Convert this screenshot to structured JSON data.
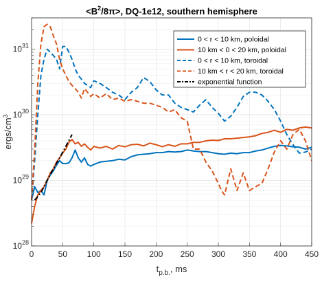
{
  "chart_data": {
    "type": "line",
    "title_parts": {
      "pre": "<B",
      "sup": "2",
      "post": "/8π>, DQ-1e12, southern hemisphere"
    },
    "xlabel_parts": {
      "main": "t",
      "sub": "p.b.",
      "post": ", ms"
    },
    "ylabel_parts": {
      "main": "ergs/cm",
      "sup": "3"
    },
    "xlim": [
      0,
      450
    ],
    "ylim": [
      1e+28,
      3e+31
    ],
    "yscale": "log",
    "grid": true,
    "legend_position": "top-right",
    "x_ticks": [
      0,
      50,
      100,
      150,
      200,
      250,
      300,
      350,
      400,
      450
    ],
    "x_tick_labels": [
      "0",
      "50",
      "100",
      "150",
      "200",
      "250",
      "300",
      "350",
      "400",
      "450"
    ],
    "y_ticks": [
      {
        "exp": 28,
        "base": "10",
        "sup": "28"
      },
      {
        "exp": 29,
        "base": "10",
        "sup": "29"
      },
      {
        "exp": 30,
        "base": "10",
        "sup": "30"
      },
      {
        "exp": 31,
        "base": "10",
        "sup": "31"
      }
    ],
    "series": [
      {
        "name": "0 < r < 10 km, poloidal",
        "color": "#0072BD",
        "dash": "solid",
        "width": 2,
        "x": [
          0,
          5,
          10,
          15,
          20,
          25,
          30,
          35,
          40,
          45,
          50,
          55,
          60,
          65,
          70,
          75,
          80,
          85,
          90,
          95,
          100,
          110,
          120,
          130,
          140,
          150,
          160,
          170,
          180,
          190,
          200,
          210,
          220,
          230,
          240,
          250,
          260,
          270,
          280,
          290,
          300,
          310,
          320,
          330,
          340,
          350,
          360,
          370,
          380,
          390,
          400,
          410,
          420,
          430,
          440,
          450
        ],
        "y": [
          5e+28,
          8e+28,
          6.5e+28,
          7e+28,
          6e+28,
          1e+29,
          1.2e+29,
          1.4e+29,
          1.7e+29,
          2e+29,
          1.8e+29,
          1.8e+29,
          1.85e+29,
          2.2e+29,
          2.9e+29,
          2.2e+29,
          1.9e+29,
          2.2e+29,
          1.75e+29,
          1.65e+29,
          1.75e+29,
          1.9e+29,
          1.95e+29,
          2e+29,
          2.1e+29,
          2.05e+29,
          2.3e+29,
          2.45e+29,
          2.5e+29,
          2.55e+29,
          2.65e+29,
          2.65e+29,
          2.75e+29,
          2.7e+29,
          2.75e+29,
          2.9e+29,
          2.8e+29,
          2.75e+29,
          2.75e+29,
          2.65e+29,
          2.55e+29,
          2.5e+29,
          2.6e+29,
          2.55e+29,
          2.65e+29,
          2.65e+29,
          2.8e+29,
          2.9e+29,
          3.1e+29,
          3.3e+29,
          3.4e+29,
          3.35e+29,
          3.25e+29,
          3.2e+29,
          3e+29,
          3.2e+29
        ]
      },
      {
        "name": "10 km < 0 < 20 km, poloidal",
        "color": "#D95319",
        "dash": "solid",
        "width": 2,
        "x": [
          0,
          5,
          10,
          15,
          20,
          25,
          30,
          35,
          40,
          45,
          50,
          55,
          60,
          65,
          70,
          75,
          80,
          85,
          90,
          95,
          100,
          110,
          120,
          130,
          140,
          150,
          160,
          170,
          180,
          190,
          200,
          210,
          220,
          230,
          240,
          250,
          260,
          270,
          280,
          290,
          300,
          310,
          320,
          330,
          340,
          350,
          360,
          370,
          380,
          390,
          400,
          410,
          420,
          430,
          440,
          450
        ],
        "y": [
          2.2e+28,
          4e+28,
          6e+28,
          7e+28,
          8e+28,
          1e+29,
          1.3e+29,
          1.5e+29,
          1.9e+29,
          2.2e+29,
          2.6e+29,
          3e+29,
          3.8e+29,
          4.2e+29,
          3.6e+29,
          3.8e+29,
          3.3e+29,
          3.6e+29,
          3.2e+29,
          2.9e+29,
          3.3e+29,
          3.1e+29,
          3.3e+29,
          3e+29,
          3.4e+29,
          3.25e+29,
          3.5e+29,
          3.55e+29,
          3.35e+29,
          3.7e+29,
          3.5e+29,
          3.25e+29,
          3.5e+29,
          3.3e+29,
          3.6e+29,
          3.6e+29,
          3.8e+29,
          3.8e+29,
          4e+29,
          4.1e+29,
          4.05e+29,
          4.3e+29,
          4.3e+29,
          4.4e+29,
          4.5e+29,
          4.6e+29,
          4.8e+29,
          5.2e+29,
          5.4e+29,
          5.8e+29,
          5.4e+29,
          6e+29,
          5.8e+29,
          6.3e+29,
          6.5e+29,
          6.3e+29
        ]
      },
      {
        "name": "0 < r < 10 km, toroidal",
        "color": "#0072BD",
        "dash": "dashed",
        "width": 2,
        "x": [
          0,
          5,
          10,
          15,
          20,
          25,
          30,
          35,
          40,
          45,
          50,
          55,
          60,
          65,
          70,
          75,
          80,
          85,
          90,
          95,
          100,
          110,
          120,
          130,
          140,
          150,
          160,
          170,
          180,
          190,
          200,
          210,
          220,
          230,
          240,
          250,
          260,
          270,
          280,
          290,
          300,
          310,
          320,
          330,
          340,
          350,
          360,
          370,
          380,
          390,
          400,
          410,
          420,
          430,
          440,
          450
        ],
        "y": [
          5e+28,
          2e+29,
          1e+30,
          4e+30,
          7e+30,
          1e+31,
          9e+30,
          8e+30,
          7e+30,
          5e+30,
          1.1e+31,
          1.1e+31,
          9e+30,
          7e+30,
          5e+30,
          4e+30,
          3.5e+30,
          3e+30,
          2.8e+30,
          2.6e+30,
          3.3e+30,
          3e+30,
          2.6e+30,
          2.2e+30,
          2e+30,
          1.7e+30,
          2.2e+30,
          2.6e+30,
          3.7e+30,
          3.2e+30,
          2.4e+30,
          2e+30,
          2e+30,
          1.5e+30,
          1.3e+30,
          1.2e+30,
          1.1e+30,
          1.4e+30,
          1.7e+30,
          1.3e+30,
          1.05e+30,
          8e+29,
          9.5e+29,
          1.3e+30,
          1.9e+30,
          2.2e+30,
          2.2e+30,
          2e+30,
          1.6e+30,
          1.2e+30,
          8e+29,
          5e+29,
          3.5e+29,
          2.6e+29,
          2.7e+29,
          3e+29
        ]
      },
      {
        "name": "10 km < r < 20 km, toroidal",
        "color": "#D95319",
        "dash": "dashed",
        "width": 2,
        "x": [
          0,
          5,
          10,
          15,
          20,
          25,
          30,
          35,
          40,
          45,
          50,
          55,
          60,
          65,
          70,
          75,
          80,
          85,
          90,
          95,
          100,
          110,
          120,
          130,
          140,
          150,
          160,
          170,
          180,
          190,
          200,
          210,
          220,
          230,
          240,
          250,
          260,
          270,
          280,
          290,
          300,
          305,
          310,
          320,
          330,
          340,
          350,
          360,
          370,
          380,
          390,
          400,
          410,
          420,
          430,
          440,
          450
        ],
        "y": [
          5e+28,
          3e+29,
          3e+30,
          1.2e+31,
          2.2e+31,
          2.4e+31,
          2.2e+31,
          1.6e+31,
          1.2e+31,
          7e+30,
          5e+30,
          4e+30,
          3.2e+30,
          2.8e+30,
          2.5e+30,
          2.2e+30,
          1.8e+30,
          2.5e+30,
          2.2e+30,
          1.9e+30,
          2.1e+30,
          1.8e+30,
          2.1e+30,
          1.7e+30,
          1.8e+30,
          1.6e+30,
          1.7e+30,
          1.6e+30,
          1.5e+30,
          1.5e+30,
          1.4e+30,
          1.3e+30,
          1.1e+30,
          1.2e+30,
          9e+29,
          8e+29,
          3e+29,
          3e+29,
          1.9e+29,
          1.4e+29,
          9e+28,
          7e+28,
          6e+28,
          1.5e+29,
          7e+28,
          1.3e+29,
          7e+28,
          8e+28,
          9e+28,
          1.5e+29,
          2.7e+29,
          4e+29,
          3e+29,
          5e+29,
          6e+29,
          4e+29,
          2e+29
        ]
      },
      {
        "name": "exponential function",
        "color": "#000000",
        "dash": "dashdot",
        "width": 2,
        "x": [
          5,
          15,
          25,
          35,
          45,
          55,
          65
        ],
        "y": [
          5e+28,
          6.5e+28,
          1e+29,
          1.5e+29,
          2.2e+29,
          3.3e+29,
          5e+29
        ]
      }
    ]
  }
}
